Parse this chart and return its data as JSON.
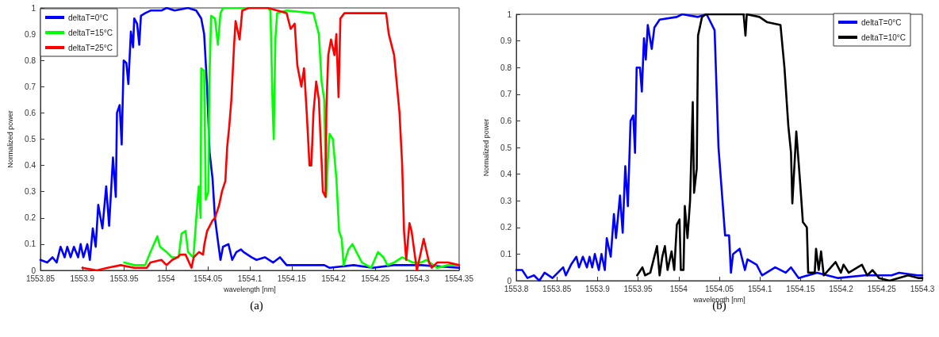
{
  "chart_data": [
    {
      "type": "line",
      "xlabel": "wavelength [nm]",
      "ylabel": "Normalized power",
      "annotations": [
        "(a)"
      ],
      "xlim": [
        1553.85,
        1554.35
      ],
      "xticks": [
        1553.85,
        1553.9,
        1553.95,
        1554,
        1554.05,
        1554.1,
        1554.15,
        1554.2,
        1554.25,
        1554.3,
        1554.35
      ],
      "ylim": [
        0,
        1
      ],
      "yticks": [
        0,
        0.1,
        0.2,
        0.3,
        0.4,
        0.5,
        0.6,
        0.7,
        0.8,
        0.9,
        1
      ],
      "grid": false,
      "legend": "top left",
      "marker": "none",
      "line_style": "solid",
      "series": [
        {
          "name": "deltaT=0°C",
          "color": "#0000ff",
          "x": [
            1553.85,
            1553.858,
            1553.8644,
            1553.8693,
            1553.874,
            1553.8789,
            1553.882,
            1553.886,
            1553.89,
            1553.895,
            1553.898,
            1553.9013,
            1553.906,
            1553.909,
            1553.9125,
            1553.916,
            1553.919,
            1553.924,
            1553.9285,
            1553.932,
            1553.9366,
            1553.94,
            1553.9414,
            1553.9446,
            1553.947,
            1553.9494,
            1553.9526,
            1553.955,
            1553.958,
            1553.9606,
            1553.962,
            1553.9654,
            1553.968,
            1553.97,
            1553.975,
            1553.9814,
            1553.9944,
            1554.0006,
            1554.0103,
            1554.0263,
            1554.036,
            1554.042,
            1554.0455,
            1554.049,
            1554.052,
            1554.0555,
            1554.0584,
            1554.0616,
            1554.065,
            1554.068,
            1554.0745,
            1554.079,
            1554.084,
            1554.0894,
            1554.0926,
            1554.102,
            1554.108,
            1554.118,
            1554.128,
            1554.136,
            1554.144,
            1554.163,
            1554.176,
            1554.189,
            1554.195,
            1554.224,
            1554.247,
            1554.272,
            1554.3045,
            1554.35
          ],
          "values": [
            0.04,
            0.03,
            0.05,
            0.03,
            0.09,
            0.05,
            0.09,
            0.05,
            0.09,
            0.05,
            0.1,
            0.05,
            0.1,
            0.04,
            0.16,
            0.09,
            0.25,
            0.16,
            0.32,
            0.17,
            0.43,
            0.28,
            0.6,
            0.63,
            0.48,
            0.8,
            0.79,
            0.71,
            0.91,
            0.85,
            0.96,
            0.94,
            0.86,
            0.97,
            0.98,
            0.99,
            0.99,
            1,
            0.99,
            1,
            0.99,
            0.96,
            0.9,
            0.7,
            0.45,
            0.35,
            0.2,
            0.12,
            0.04,
            0.09,
            0.1,
            0.04,
            0.07,
            0.08,
            0.07,
            0.05,
            0.04,
            0.05,
            0.03,
            0.05,
            0.02,
            0.02,
            0.02,
            0.02,
            0.01,
            0.02,
            0.01,
            0.02,
            0.02,
            0.01
          ]
        },
        {
          "name": "deltaT=15°C",
          "color": "#00ff00",
          "x": [
            1553.95,
            1553.962,
            1553.975,
            1553.9814,
            1553.9896,
            1553.9928,
            1554.0006,
            1554.007,
            1554.015,
            1554.0185,
            1554.0233,
            1554.0263,
            1554.0327,
            1554.0359,
            1554.039,
            1554.0413,
            1554.042,
            1554.0455,
            1554.0474,
            1554.0506,
            1554.0516,
            1554.0538,
            1554.0584,
            1554.0619,
            1554.065,
            1554.068,
            1554.1215,
            1554.1247,
            1554.1273,
            1554.1286,
            1554.1305,
            1554.1327,
            1554.144,
            1554.176,
            1554.1825,
            1554.1857,
            1554.1889,
            1554.1911,
            1554.1937,
            1554.1953,
            1554.1992,
            1554.2034,
            1554.2066,
            1554.2098,
            1554.212,
            1554.2178,
            1554.2226,
            1554.2274,
            1554.2339,
            1554.245,
            1554.2531,
            1554.2595,
            1554.2644,
            1554.2724,
            1554.282,
            1554.2948,
            1554.3045,
            1554.311,
            1554.3237,
            1554.3366,
            1554.35
          ],
          "values": [
            0.03,
            0.02,
            0.02,
            0.07,
            0.13,
            0.09,
            0.07,
            0.05,
            0.05,
            0.14,
            0.15,
            0.07,
            0.05,
            0.19,
            0.32,
            0.2,
            0.77,
            0.76,
            0.27,
            0.3,
            0.7,
            0.97,
            0.96,
            0.86,
            0.98,
            1,
            1,
            0.99,
            0.62,
            0.5,
            0.88,
            0.98,
            0.99,
            0.98,
            0.9,
            0.72,
            0.65,
            0.28,
            0.45,
            0.52,
            0.5,
            0.35,
            0.15,
            0.12,
            0.02,
            0.08,
            0.1,
            0.07,
            0.03,
            0.01,
            0.07,
            0.05,
            0.02,
            0.03,
            0.05,
            0.03,
            0.03,
            0.04,
            0.01,
            0.02,
            0.02
          ]
        },
        {
          "name": "deltaT=25°C",
          "color": "#ff0000",
          "x": [
            1553.9,
            1553.9174,
            1553.93,
            1553.946,
            1553.962,
            1553.977,
            1553.9814,
            1553.9944,
            1554.0006,
            1554.0074,
            1554.0138,
            1554.017,
            1554.0233,
            1554.0304,
            1554.033,
            1554.0394,
            1554.0442,
            1554.0458,
            1554.049,
            1554.0555,
            1554.0584,
            1554.0635,
            1554.0667,
            1554.0708,
            1554.073,
            1554.0755,
            1554.078,
            1554.0811,
            1554.083,
            1554.0878,
            1554.091,
            1554.099,
            1554.1215,
            1554.144,
            1554.1488,
            1554.1536,
            1554.1568,
            1554.1616,
            1554.1648,
            1554.168,
            1554.1713,
            1554.1735,
            1554.176,
            1554.1793,
            1554.1825,
            1554.1873,
            1554.1905,
            1554.1915,
            1554.1937,
            1554.197,
            1554.2011,
            1554.2034,
            1554.206,
            1554.2082,
            1554.213,
            1554.2403,
            1554.2628,
            1554.266,
            1554.2724,
            1554.2788,
            1554.282,
            1554.2842,
            1554.2868,
            1554.2907,
            1554.2932,
            1554.2996,
            1554.3077,
            1554.3141,
            1554.3173,
            1554.3237,
            1554.3366,
            1554.35
          ],
          "values": [
            0.01,
            0,
            0.01,
            0.02,
            0.01,
            0.01,
            0.03,
            0.04,
            0.02,
            0.04,
            0.05,
            0.06,
            0.06,
            0.01,
            0.05,
            0.07,
            0.06,
            0.1,
            0.15,
            0.19,
            0.2,
            0.25,
            0.3,
            0.34,
            0.47,
            0.55,
            0.65,
            0.85,
            0.95,
            0.88,
            0.99,
            1,
            1,
            0.98,
            0.92,
            0.94,
            0.78,
            0.7,
            0.77,
            0.6,
            0.4,
            0.4,
            0.6,
            0.72,
            0.65,
            0.3,
            0.28,
            0.62,
            0.82,
            0.88,
            0.82,
            0.9,
            0.66,
            0.96,
            0.98,
            0.98,
            0.98,
            0.9,
            0.82,
            0.6,
            0.4,
            0.15,
            0.04,
            0.18,
            0.15,
            0,
            0.12,
            0.03,
            0.01,
            0.03,
            0.03,
            0.02
          ]
        }
      ]
    },
    {
      "type": "line",
      "xlabel": "wavelength [nm]",
      "ylabel": "Normalized power",
      "annotations": [
        "(b)"
      ],
      "xlim": [
        1553.8,
        1554.3
      ],
      "xticks": [
        1553.8,
        1553.85,
        1553.9,
        1553.95,
        1554,
        1554.05,
        1554.1,
        1554.15,
        1554.2,
        1554.25,
        1554.3
      ],
      "ylim": [
        0,
        1
      ],
      "yticks": [
        0,
        0.1,
        0.2,
        0.3,
        0.4,
        0.5,
        0.6,
        0.7,
        0.8,
        0.9,
        1
      ],
      "grid": false,
      "legend": "top right",
      "marker": "none",
      "line_style": "solid",
      "series": [
        {
          "name": "deltaT=0°C",
          "color": "#0000ff",
          "x": [
            1553.8,
            1553.8072,
            1553.8137,
            1553.8218,
            1553.8283,
            1553.8348,
            1553.8446,
            1553.8577,
            1553.861,
            1553.8674,
            1553.874,
            1553.8772,
            1553.882,
            1553.887,
            1553.8902,
            1553.8935,
            1553.8967,
            1553.9016,
            1553.9049,
            1553.909,
            1553.9114,
            1553.9163,
            1553.9202,
            1553.9228,
            1553.9277,
            1553.931,
            1553.9342,
            1553.9374,
            1553.9407,
            1553.944,
            1553.9462,
            1553.9482,
            1553.9523,
            1553.9546,
            1553.9572,
            1553.9595,
            1553.9619,
            1553.9668,
            1553.97,
            1553.9765,
            1553.9977,
            1554.0042,
            1554.0238,
            1554.0344,
            1554.0442,
            1554.049,
            1554.0571,
            1554.062,
            1554.0643,
            1554.0669,
            1554.075,
            1554.0815,
            1554.0847,
            1554.096,
            1554.1026,
            1554.1188,
            1554.1318,
            1554.1383,
            1554.1477,
            1554.1704,
            1554.1964,
            1554.2289,
            1554.262,
            1554.2714,
            1554.2942,
            1554.3
          ],
          "values": [
            0.04,
            0.04,
            0.01,
            0.02,
            0,
            0.03,
            0.01,
            0.05,
            0.02,
            0.06,
            0.09,
            0.05,
            0.09,
            0.05,
            0.09,
            0.05,
            0.1,
            0.04,
            0.1,
            0.04,
            0.16,
            0.09,
            0.25,
            0.16,
            0.32,
            0.18,
            0.43,
            0.28,
            0.6,
            0.62,
            0.48,
            0.8,
            0.8,
            0.71,
            0.91,
            0.83,
            0.96,
            0.87,
            0.95,
            0.98,
            0.99,
            1,
            0.99,
            1,
            0.94,
            0.5,
            0.17,
            0.17,
            0.03,
            0.1,
            0.12,
            0.04,
            0.08,
            0.06,
            0.02,
            0.05,
            0.03,
            0.05,
            0.01,
            0.03,
            0.01,
            0.02,
            0.02,
            0.03,
            0.02,
            0.02
          ]
        },
        {
          "name": "deltaT=10°C",
          "color": "#000000",
          "x": [
            1553.9488,
            1553.9553,
            1553.9586,
            1553.965,
            1553.9733,
            1553.9765,
            1553.9798,
            1553.983,
            1553.9863,
            1553.9912,
            1553.9945,
            1553.9977,
            1554.001,
            1554.0026,
            1554.0059,
            1554.0075,
            1554.0108,
            1554.014,
            1554.0173,
            1554.0189,
            1554.0222,
            1554.0238,
            1554.0287,
            1554.0336,
            1554.0799,
            1554.0822,
            1554.0838,
            1554.0994,
            1554.1091,
            1554.1253,
            1554.1302,
            1554.135,
            1554.1383,
            1554.1399,
            1554.1448,
            1554.1497,
            1554.1529,
            1554.1578,
            1554.1594,
            1554.1675,
            1554.1691,
            1554.1724,
            1554.1753,
            1554.1786,
            1554.1932,
            1554.1997,
            1554.2029,
            1554.2094,
            1554.2256,
            1554.2321,
            1554.2386,
            1554.2467,
            1554.2597,
            1554.2824,
            1554.2955,
            1554.3
          ],
          "values": [
            0.02,
            0.05,
            0.02,
            0.03,
            0.13,
            0.02,
            0.09,
            0.13,
            0.04,
            0.11,
            0.04,
            0.21,
            0.23,
            0.04,
            0.04,
            0.28,
            0.16,
            0.3,
            0.67,
            0.33,
            0.42,
            0.92,
            0.99,
            1,
            1,
            0.92,
            1,
            0.99,
            0.97,
            0.96,
            0.8,
            0.58,
            0.48,
            0.29,
            0.56,
            0.36,
            0.22,
            0.2,
            0.03,
            0.03,
            0.12,
            0.04,
            0.11,
            0.02,
            0.07,
            0.03,
            0.06,
            0.03,
            0.06,
            0.02,
            0.04,
            0.01,
            0,
            0.02,
            0.01,
            0.01
          ]
        }
      ]
    }
  ]
}
